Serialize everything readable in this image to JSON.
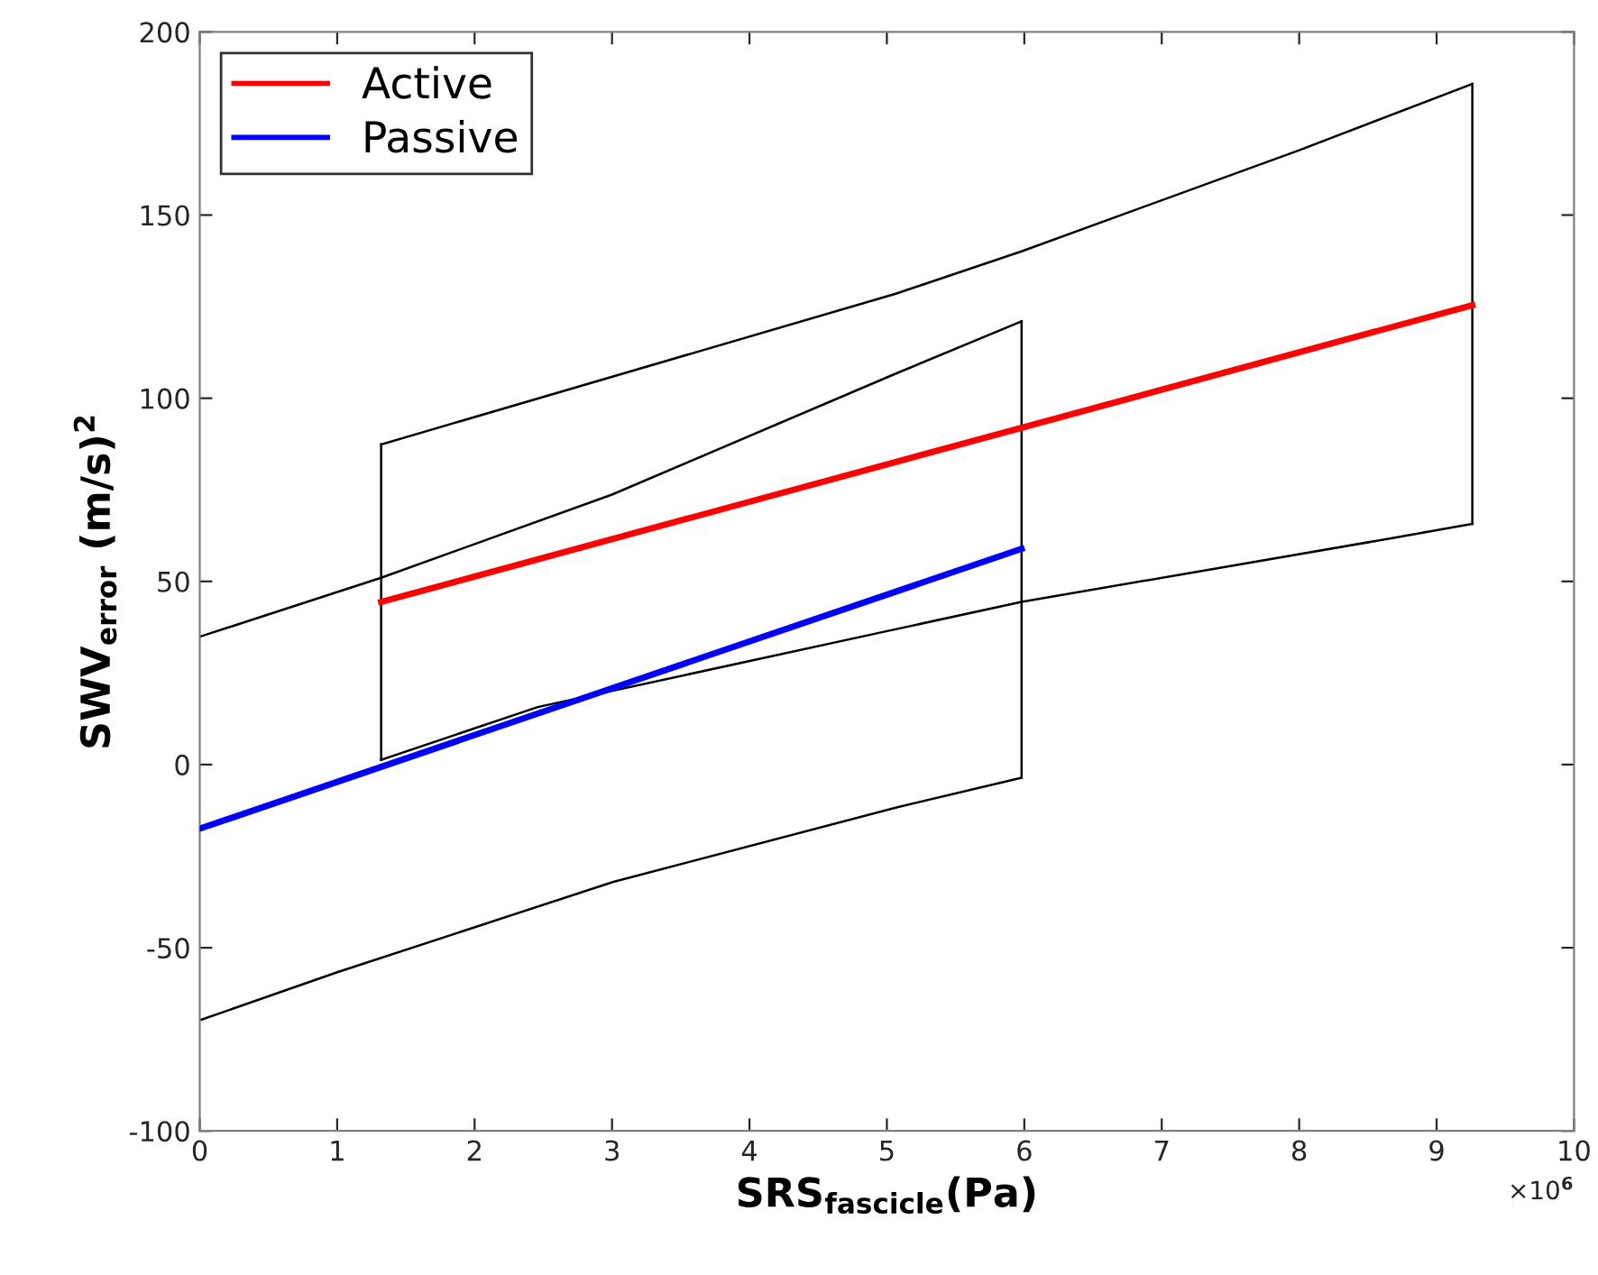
{
  "chart_data": {
    "type": "line",
    "xlabel": "SRS$_{fascicle}$(Pa)",
    "ylabel": "SWV$_{error}$ (m/s)$^{2}$",
    "annotations": [
      "×10$^{6}$"
    ],
    "xlim": [
      0,
      10
    ],
    "xticks": [
      0,
      1,
      2,
      3,
      4,
      5,
      6,
      7,
      8,
      9,
      10
    ],
    "ylim": [
      -100,
      200
    ],
    "yticks": [
      -100,
      -50,
      0,
      50,
      100,
      150,
      200
    ],
    "grid": false,
    "legend": "top left",
    "line_style": "solid",
    "marker": "none",
    "series": [
      {
        "name": "Active",
        "color": "#ff0000",
        "x": [
          1.32,
          9.26
        ],
        "values": [
          44.4,
          125.4
        ]
      },
      {
        "name": "Passive",
        "color": "#0000ff",
        "x": [
          0,
          5.98
        ],
        "values": [
          -17.5,
          58.9
        ]
      },
      {
        "color": "#000000",
        "x": [
          1.32,
          5.07,
          5.98,
          8.0,
          9.26
        ],
        "values": [
          87.4,
          128.6,
          140.1,
          167.7,
          185.8
        ]
      },
      {
        "color": "#000000",
        "x": [
          1.32,
          2.46,
          5.07,
          5.98,
          8.66,
          9.26
        ],
        "values": [
          1.3,
          15.7,
          37,
          44.4,
          61.7,
          65.7
        ]
      },
      {
        "color": "#000000",
        "x": [
          0,
          1.32,
          3,
          5.07,
          5.98
        ],
        "values": [
          34.9,
          51,
          73.7,
          106.8,
          121
        ]
      },
      {
        "color": "#000000",
        "x": [
          0,
          1,
          3.01,
          5.07,
          5.98
        ],
        "values": [
          -69.8,
          -56.7,
          -32,
          -11.7,
          -3.6
        ]
      },
      {
        "color": "#000000",
        "x": [
          1.32,
          1.32
        ],
        "values": [
          1.3,
          87.4
        ]
      },
      {
        "color": "#000000",
        "x": [
          9.26,
          9.26
        ],
        "values": [
          65.7,
          185.8
        ]
      },
      {
        "color": "#000000",
        "x": [
          5.98,
          5.98
        ],
        "values": [
          -3.6,
          121
        ]
      }
    ]
  }
}
